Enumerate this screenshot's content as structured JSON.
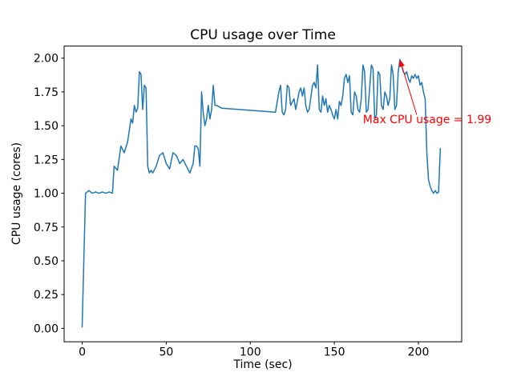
{
  "chart_data": {
    "type": "line",
    "title": "CPU usage over Time",
    "xlabel": "Time (sec)",
    "ylabel": "CPU usage (cores)",
    "line_color": "#1f77b4",
    "grid": false,
    "xlim": [
      -10.75,
      225.75
    ],
    "ylim": [
      -0.0995,
      2.0895
    ],
    "x_ticks": [
      0,
      50,
      100,
      150,
      200
    ],
    "x_tick_labels": [
      "0",
      "50",
      "100",
      "150",
      "200"
    ],
    "y_ticks": [
      0.0,
      0.25,
      0.5,
      0.75,
      1.0,
      1.25,
      1.5,
      1.75,
      2.0
    ],
    "y_tick_labels": [
      "0.00",
      "0.25",
      "0.50",
      "0.75",
      "1.00",
      "1.25",
      "1.50",
      "1.75",
      "2.00"
    ],
    "x": [
      0,
      2,
      4,
      6,
      8,
      10,
      12,
      14,
      16,
      18,
      19,
      21,
      23,
      25,
      27,
      29,
      30,
      31,
      32,
      33,
      34,
      35,
      36,
      37,
      38,
      39,
      40,
      41,
      42,
      44,
      46,
      48,
      50,
      52,
      54,
      56,
      58,
      60,
      62,
      64,
      66,
      67,
      68,
      69,
      70,
      71,
      72,
      73,
      74,
      75,
      76,
      77,
      78,
      79,
      80,
      83,
      115,
      117,
      118,
      119,
      120,
      121,
      122,
      123,
      124,
      126,
      127,
      128,
      129,
      130,
      131,
      132,
      133,
      134,
      135,
      137,
      138,
      139,
      140,
      141,
      142,
      143,
      144,
      145,
      146,
      147,
      148,
      149,
      150,
      151,
      152,
      153,
      154,
      155,
      156,
      157,
      158,
      159,
      160,
      161,
      162,
      163,
      164,
      165,
      166,
      167,
      168,
      169,
      170,
      171,
      172,
      173,
      174,
      175,
      176,
      177,
      178,
      179,
      180,
      181,
      182,
      183,
      184,
      185,
      186,
      187,
      188,
      189,
      190,
      191,
      192,
      193,
      194,
      195,
      196,
      197,
      198,
      199,
      200,
      201,
      202,
      203,
      204,
      205,
      206,
      207,
      208,
      209,
      210,
      211,
      212,
      213
    ],
    "y": [
      0.01,
      1.0,
      1.02,
      1.0,
      1.01,
      1.0,
      1.01,
      1.0,
      1.01,
      1.0,
      1.2,
      1.17,
      1.35,
      1.3,
      1.38,
      1.55,
      1.52,
      1.65,
      1.6,
      1.63,
      1.9,
      1.88,
      1.62,
      1.8,
      1.78,
      1.2,
      1.15,
      1.17,
      1.15,
      1.2,
      1.28,
      1.3,
      1.22,
      1.18,
      1.3,
      1.28,
      1.22,
      1.25,
      1.2,
      1.15,
      1.22,
      1.35,
      1.35,
      1.33,
      1.2,
      1.75,
      1.6,
      1.5,
      1.55,
      1.65,
      1.55,
      1.62,
      1.8,
      1.65,
      1.65,
      1.63,
      1.6,
      1.75,
      1.8,
      1.6,
      1.58,
      1.62,
      1.8,
      1.78,
      1.65,
      1.7,
      1.62,
      1.68,
      1.75,
      1.78,
      1.72,
      1.78,
      1.65,
      1.6,
      1.62,
      1.8,
      1.82,
      1.78,
      1.95,
      1.62,
      1.6,
      1.72,
      1.65,
      1.7,
      1.6,
      1.65,
      1.62,
      1.58,
      1.55,
      1.62,
      1.55,
      1.68,
      1.65,
      1.72,
      1.85,
      1.88,
      1.82,
      1.87,
      1.6,
      1.58,
      1.75,
      1.72,
      1.62,
      1.6,
      1.7,
      1.95,
      1.9,
      1.6,
      1.62,
      1.78,
      1.95,
      1.92,
      1.55,
      1.58,
      1.9,
      1.88,
      1.65,
      1.62,
      1.75,
      1.72,
      1.65,
      1.7,
      1.95,
      1.88,
      1.62,
      1.65,
      1.9,
      1.99,
      1.95,
      1.9,
      1.88,
      1.9,
      1.85,
      1.82,
      1.87,
      1.85,
      1.88,
      1.85,
      1.87,
      1.8,
      1.82,
      1.75,
      1.7,
      1.3,
      1.1,
      1.05,
      1.02,
      1.0,
      1.02,
      1.0,
      1.01,
      1.33
    ],
    "annotation": {
      "text": "Max CPU usage = 1.99",
      "color": "red",
      "point": [
        189,
        1.99
      ],
      "arrow_tail": [
        199,
        1.58
      ],
      "text_anchor": [
        167,
        1.52
      ]
    }
  }
}
